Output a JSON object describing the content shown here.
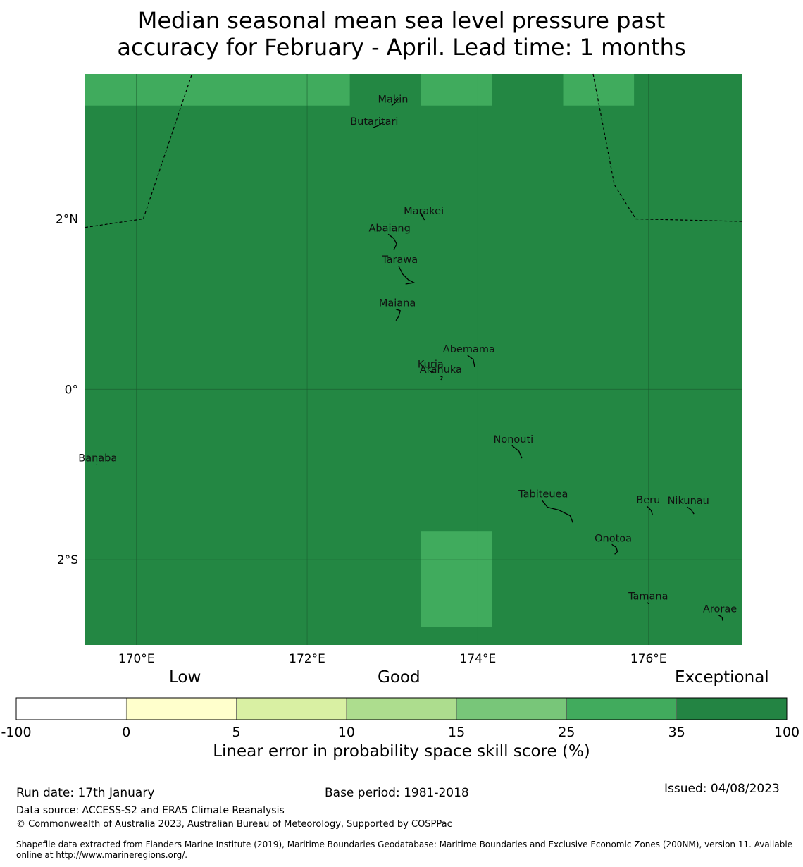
{
  "title": {
    "line1": "Median seasonal mean sea level pressure past",
    "line2": "accuracy for February - April. Lead time: 1 months"
  },
  "map": {
    "lon_range": [
      169.4,
      177.1
    ],
    "lat_range": [
      -3.0,
      3.7
    ],
    "lon_ticks": [
      {
        "value": 170,
        "label": "170°E"
      },
      {
        "value": 172,
        "label": "172°E"
      },
      {
        "value": 174,
        "label": "174°E"
      },
      {
        "value": 176,
        "label": "176°E"
      }
    ],
    "lat_ticks": [
      {
        "value": 2,
        "label": "2°N"
      },
      {
        "value": 0,
        "label": "0°"
      },
      {
        "value": -2,
        "label": "2°S"
      }
    ],
    "base_color": "#238743",
    "cells": [
      {
        "lon": [
          169.4,
          172.5
        ],
        "lat": [
          3.33,
          3.7
        ],
        "color": "#40ab5d"
      },
      {
        "lon": [
          173.33,
          174.17
        ],
        "lat": [
          3.33,
          3.7
        ],
        "color": "#40ab5d"
      },
      {
        "lon": [
          175.0,
          175.83
        ],
        "lat": [
          3.33,
          3.7
        ],
        "color": "#40ab5d"
      },
      {
        "lon": [
          173.33,
          174.17
        ],
        "lat": [
          -2.79,
          -1.67
        ],
        "color": "#40ab5d"
      }
    ],
    "eez_left": [
      [
        169.4,
        1.9
      ],
      [
        170.08,
        2.0
      ],
      [
        170.65,
        3.7
      ]
    ],
    "eez_right": [
      [
        175.35,
        3.7
      ],
      [
        175.6,
        2.4
      ],
      [
        175.85,
        2.0
      ],
      [
        177.1,
        1.97
      ]
    ],
    "islands": [
      {
        "name": "Makin",
        "lon": 172.99,
        "lat": 3.33
      },
      {
        "name": "Butaritari",
        "lon": 172.77,
        "lat": 3.07
      },
      {
        "name": "Marakei",
        "lon": 173.35,
        "lat": 2.02
      },
      {
        "name": "Abaiang",
        "lon": 172.95,
        "lat": 1.82
      },
      {
        "name": "Tarawa",
        "lon": 173.07,
        "lat": 1.45
      },
      {
        "name": "Maiana",
        "lon": 173.04,
        "lat": 0.94
      },
      {
        "name": "Abemama",
        "lon": 173.88,
        "lat": 0.4
      },
      {
        "name": "Kuria",
        "lon": 173.43,
        "lat": 0.22
      },
      {
        "name": "Aranuka",
        "lon": 173.55,
        "lat": 0.16
      },
      {
        "name": "Nonouti",
        "lon": 174.4,
        "lat": -0.66
      },
      {
        "name": "Banaba",
        "lon": 169.53,
        "lat": -0.88
      },
      {
        "name": "Tabiteuea",
        "lon": 174.75,
        "lat": -1.3
      },
      {
        "name": "Beru",
        "lon": 175.98,
        "lat": -1.37
      },
      {
        "name": "Nikunau",
        "lon": 176.45,
        "lat": -1.38
      },
      {
        "name": "Onotoa",
        "lon": 175.57,
        "lat": -1.82
      },
      {
        "name": "Tamana",
        "lon": 175.98,
        "lat": -2.5
      },
      {
        "name": "Arorae",
        "lon": 176.82,
        "lat": -2.65
      }
    ]
  },
  "colorbar": {
    "categories": [
      {
        "label": "Low",
        "align": "left"
      },
      {
        "label": "Good",
        "align": "center"
      },
      {
        "label": "Exceptional",
        "align": "right"
      }
    ],
    "tick_labels": [
      "-100",
      "0",
      "5",
      "10",
      "15",
      "25",
      "35",
      "100"
    ],
    "colors": [
      "#ffffff",
      "#ffffcc",
      "#d9f0a3",
      "#addd8e",
      "#78c679",
      "#41ab5d",
      "#238443"
    ],
    "xlabel": "Linear error in probability space skill score (%)"
  },
  "footer": {
    "run_date": "Run date: 17th January",
    "base_period": "Base period: 1981-2018",
    "issued": "Issued: 04/08/2023",
    "data_source": "Data source: ACCESS-S2 and ERA5 Climate Reanalysis",
    "copyright": "© Commonwealth of Australia 2023, Australian Bureau of Meteorology, Supported by COSPPac",
    "shapefile_line1": "Shapefile data extracted from Flanders Marine Institute (2019), Maritime Boundaries Geodatabase: Maritime Boundaries and Exclusive Economic Zones (200NM), version 11. Available",
    "shapefile_line2": "online at http://www.marineregions.org/."
  }
}
